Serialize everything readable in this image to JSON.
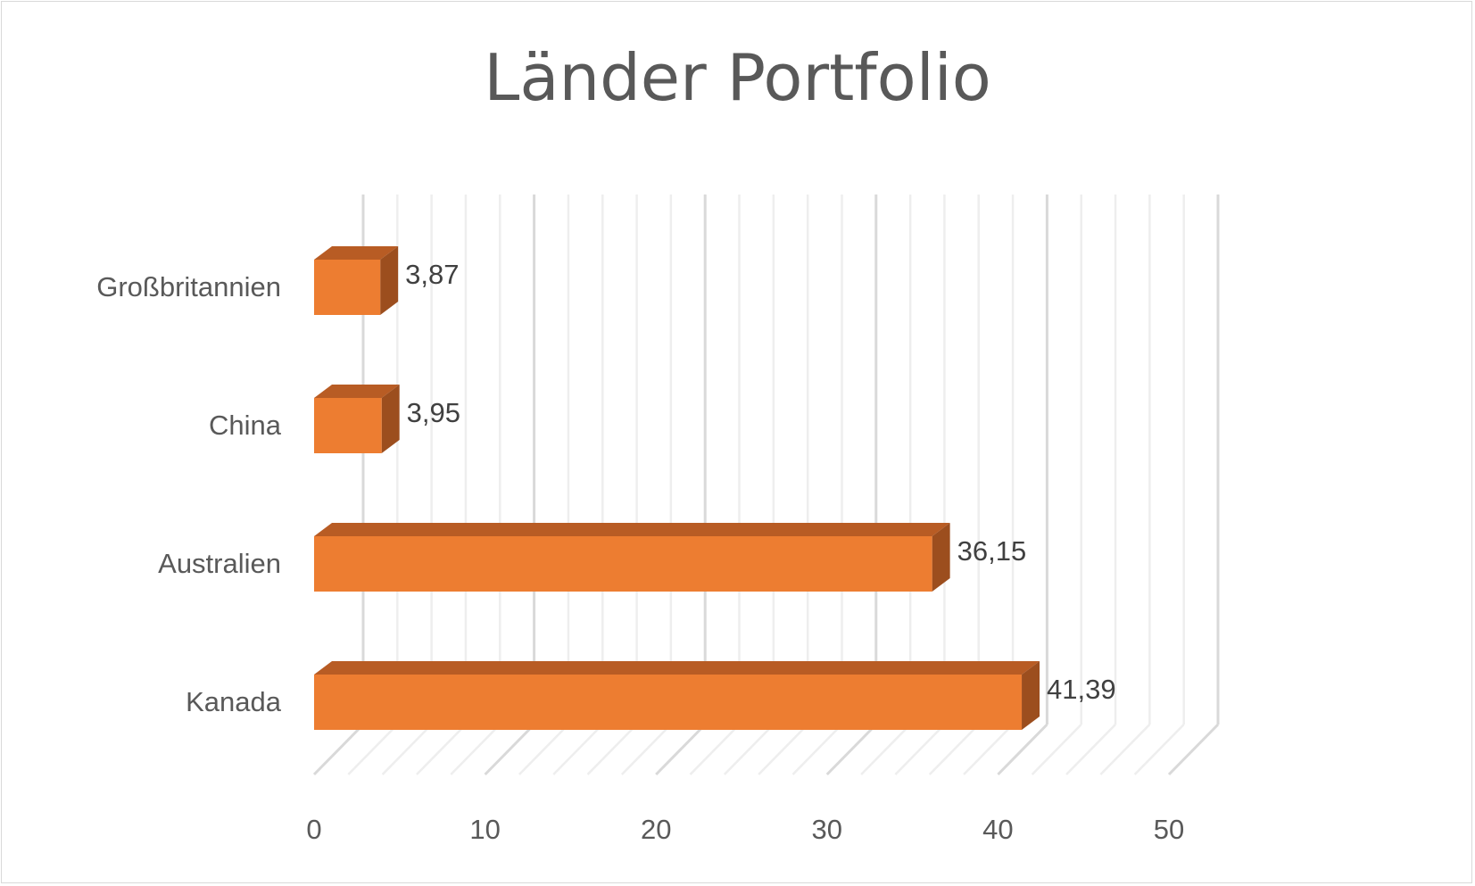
{
  "chart_data": {
    "type": "bar",
    "orientation": "horizontal",
    "title": "Länder Portfolio",
    "categories": [
      "Großbritannien",
      "China",
      "Australien",
      "Kanada"
    ],
    "values": [
      3.87,
      3.95,
      36.15,
      41.39
    ],
    "data_labels": [
      "3,87",
      "3,95",
      "36,15",
      "41,39"
    ],
    "xlim": [
      0,
      50
    ],
    "ticks": [
      "0",
      "10",
      "20",
      "30",
      "40",
      "50"
    ],
    "grid": true,
    "legend": "none",
    "style": "3d",
    "colors": {
      "bar_front": "#ED7D31",
      "bar_top": "#B85C24",
      "bar_side": "#9C4E1E"
    }
  }
}
